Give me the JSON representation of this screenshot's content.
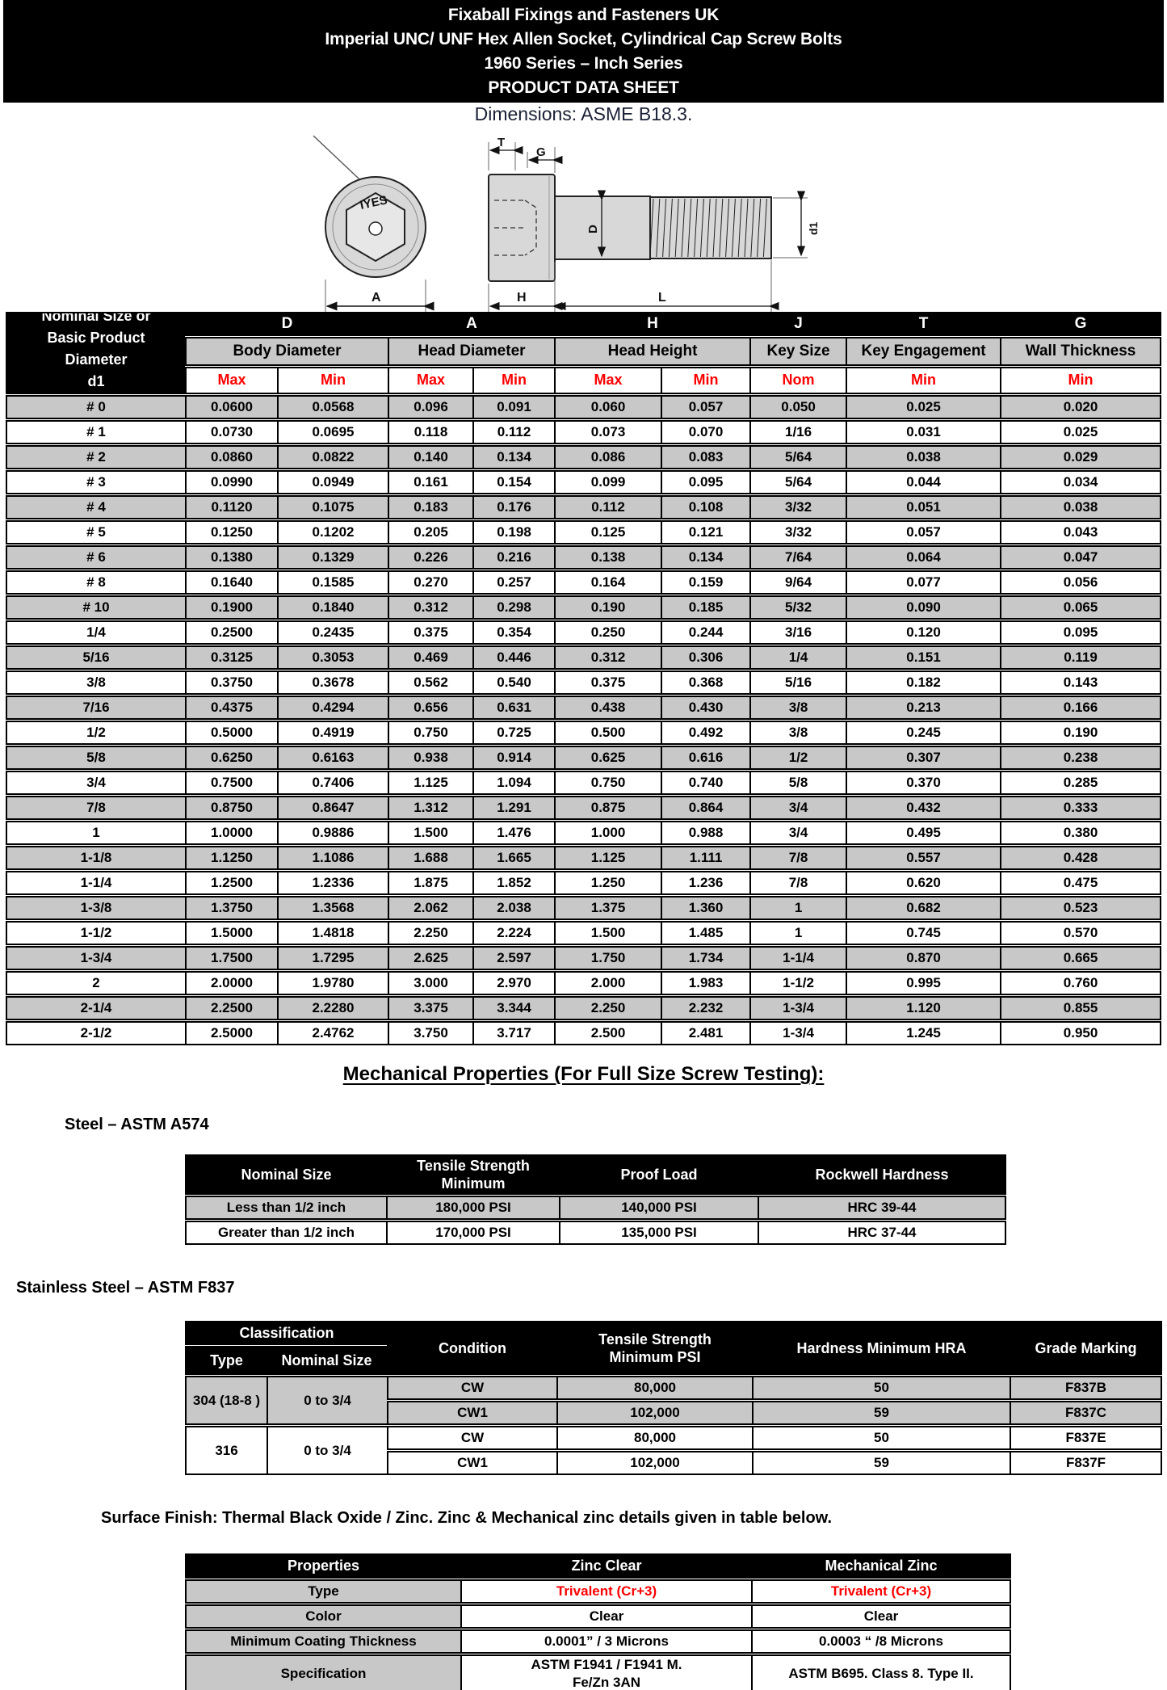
{
  "banner": {
    "lines": [
      "Fixaball Fixings and Fasteners UK",
      "Imperial UNC/ UNF Hex Allen Socket, Cylindrical Cap Screw Bolts",
      "1960 Series – Inch Series",
      "PRODUCT DATA SHEET"
    ]
  },
  "dimensions_note": "Dimensions: ASME B18.3.",
  "drawing": {
    "marking": "IYES",
    "labels": {
      "T": "T",
      "G": "G",
      "D": "D",
      "d1": "d1",
      "H": "H",
      "L": "L",
      "A": "A"
    }
  },
  "size_table": {
    "corner_lines": [
      "Nominal Size or",
      "Basic Product",
      "Diameter",
      "d1"
    ],
    "groups": [
      {
        "letter": "D",
        "title": "Body Diameter",
        "subs": [
          "Max",
          "Min"
        ]
      },
      {
        "letter": "A",
        "title": "Head Diameter",
        "subs": [
          "Max",
          "Min"
        ]
      },
      {
        "letter": "H",
        "title": "Head Height",
        "subs": [
          "Max",
          "Min"
        ]
      },
      {
        "letter": "J",
        "title": "Key Size",
        "subs": [
          "Nom"
        ]
      },
      {
        "letter": "T",
        "title": "Key Engagement",
        "subs": [
          "Min"
        ]
      },
      {
        "letter": "G",
        "title": "Wall Thickness",
        "subs": [
          "Min"
        ]
      }
    ],
    "rows": [
      [
        "# 0",
        "0.0600",
        "0.0568",
        "0.096",
        "0.091",
        "0.060",
        "0.057",
        "0.050",
        "0.025",
        "0.020"
      ],
      [
        "# 1",
        "0.0730",
        "0.0695",
        "0.118",
        "0.112",
        "0.073",
        "0.070",
        "1/16",
        "0.031",
        "0.025"
      ],
      [
        "# 2",
        "0.0860",
        "0.0822",
        "0.140",
        "0.134",
        "0.086",
        "0.083",
        "5/64",
        "0.038",
        "0.029"
      ],
      [
        "# 3",
        "0.0990",
        "0.0949",
        "0.161",
        "0.154",
        "0.099",
        "0.095",
        "5/64",
        "0.044",
        "0.034"
      ],
      [
        "# 4",
        "0.1120",
        "0.1075",
        "0.183",
        "0.176",
        "0.112",
        "0.108",
        "3/32",
        "0.051",
        "0.038"
      ],
      [
        "# 5",
        "0.1250",
        "0.1202",
        "0.205",
        "0.198",
        "0.125",
        "0.121",
        "3/32",
        "0.057",
        "0.043"
      ],
      [
        "# 6",
        "0.1380",
        "0.1329",
        "0.226",
        "0.216",
        "0.138",
        "0.134",
        "7/64",
        "0.064",
        "0.047"
      ],
      [
        "# 8",
        "0.1640",
        "0.1585",
        "0.270",
        "0.257",
        "0.164",
        "0.159",
        "9/64",
        "0.077",
        "0.056"
      ],
      [
        "# 10",
        "0.1900",
        "0.1840",
        "0.312",
        "0.298",
        "0.190",
        "0.185",
        "5/32",
        "0.090",
        "0.065"
      ],
      [
        "1/4",
        "0.2500",
        "0.2435",
        "0.375",
        "0.354",
        "0.250",
        "0.244",
        "3/16",
        "0.120",
        "0.095"
      ],
      [
        "5/16",
        "0.3125",
        "0.3053",
        "0.469",
        "0.446",
        "0.312",
        "0.306",
        "1/4",
        "0.151",
        "0.119"
      ],
      [
        "3/8",
        "0.3750",
        "0.3678",
        "0.562",
        "0.540",
        "0.375",
        "0.368",
        "5/16",
        "0.182",
        "0.143"
      ],
      [
        "7/16",
        "0.4375",
        "0.4294",
        "0.656",
        "0.631",
        "0.438",
        "0.430",
        "3/8",
        "0.213",
        "0.166"
      ],
      [
        "1/2",
        "0.5000",
        "0.4919",
        "0.750",
        "0.725",
        "0.500",
        "0.492",
        "3/8",
        "0.245",
        "0.190"
      ],
      [
        "5/8",
        "0.6250",
        "0.6163",
        "0.938",
        "0.914",
        "0.625",
        "0.616",
        "1/2",
        "0.307",
        "0.238"
      ],
      [
        "3/4",
        "0.7500",
        "0.7406",
        "1.125",
        "1.094",
        "0.750",
        "0.740",
        "5/8",
        "0.370",
        "0.285"
      ],
      [
        "7/8",
        "0.8750",
        "0.8647",
        "1.312",
        "1.291",
        "0.875",
        "0.864",
        "3/4",
        "0.432",
        "0.333"
      ],
      [
        "1",
        "1.0000",
        "0.9886",
        "1.500",
        "1.476",
        "1.000",
        "0.988",
        "3/4",
        "0.495",
        "0.380"
      ],
      [
        "1-1/8",
        "1.1250",
        "1.1086",
        "1.688",
        "1.665",
        "1.125",
        "1.111",
        "7/8",
        "0.557",
        "0.428"
      ],
      [
        "1-1/4",
        "1.2500",
        "1.2336",
        "1.875",
        "1.852",
        "1.250",
        "1.236",
        "7/8",
        "0.620",
        "0.475"
      ],
      [
        "1-3/8",
        "1.3750",
        "1.3568",
        "2.062",
        "2.038",
        "1.375",
        "1.360",
        "1",
        "0.682",
        "0.523"
      ],
      [
        "1-1/2",
        "1.5000",
        "1.4818",
        "2.250",
        "2.224",
        "1.500",
        "1.485",
        "1",
        "0.745",
        "0.570"
      ],
      [
        "1-3/4",
        "1.7500",
        "1.7295",
        "2.625",
        "2.597",
        "1.750",
        "1.734",
        "1-1/4",
        "0.870",
        "0.665"
      ],
      [
        "2",
        "2.0000",
        "1.9780",
        "3.000",
        "2.970",
        "2.000",
        "1.983",
        "1-1/2",
        "0.995",
        "0.760"
      ],
      [
        "2-1/4",
        "2.2500",
        "2.2280",
        "3.375",
        "3.344",
        "2.250",
        "2.232",
        "1-3/4",
        "1.120",
        "0.855"
      ],
      [
        "2-1/2",
        "2.5000",
        "2.4762",
        "3.750",
        "3.717",
        "2.500",
        "2.481",
        "1-3/4",
        "1.245",
        "0.950"
      ]
    ]
  },
  "mechanical": {
    "heading": "Mechanical Properties (For Full Size Screw Testing):",
    "steel_label": "Steel – ASTM A574",
    "steel_table": {
      "headers": [
        "Nominal Size",
        "Tensile Strength\nMinimum",
        "Proof Load",
        "Rockwell Hardness"
      ],
      "rows": [
        [
          "Less than 1/2 inch",
          "180,000 PSI",
          "140,000 PSI",
          "HRC 39-44"
        ],
        [
          "Greater than 1/2 inch",
          "170,000 PSI",
          "135,000 PSI",
          "HRC 37-44"
        ]
      ]
    },
    "stainless_label": "Stainless Steel – ASTM F837",
    "stainless_table": {
      "header": {
        "classification": "Classification",
        "type": "Type",
        "nominal_size": "Nominal Size",
        "condition": "Condition",
        "tensile": "Tensile Strength\nMinimum PSI",
        "hardness": "Hardness Minimum HRA",
        "grade": "Grade Marking"
      },
      "groups": [
        {
          "type": "304 (18-8 )",
          "size": "0 to 3/4",
          "shaded": true,
          "rows": [
            [
              "CW",
              "80,000",
              "50",
              "F837B"
            ],
            [
              "CW1",
              "102,000",
              "59",
              "F837C"
            ]
          ]
        },
        {
          "type": "316",
          "size": "0 to 3/4",
          "shaded": false,
          "rows": [
            [
              "CW",
              "80,000",
              "50",
              "F837E"
            ],
            [
              "CW1",
              "102,000",
              "59",
              "F837F"
            ]
          ]
        }
      ]
    }
  },
  "surface": {
    "note": "Surface Finish: Thermal Black Oxide / Zinc. Zinc & Mechanical zinc details given in table below.",
    "table": {
      "headers": [
        "Properties",
        "Zinc Clear",
        "Mechanical Zinc"
      ],
      "rows": [
        {
          "label": "Type",
          "zinc": "Trivalent (Cr+3)",
          "mech": "Trivalent (Cr+3)",
          "red": true
        },
        {
          "label": "Color",
          "zinc": "Clear",
          "mech": "Clear",
          "red": false
        },
        {
          "label": "Minimum Coating Thickness",
          "zinc": "0.0001” / 3 Microns",
          "mech": "0.0003 “ /8 Microns",
          "red": false
        },
        {
          "label": "Specification",
          "zinc": "ASTM F1941 / F1941 M.\nFe/Zn 3AN",
          "mech": "ASTM B695. Class 8. Type II.",
          "red": false
        }
      ]
    }
  },
  "colors": {
    "banner_black": "#000000",
    "row_gray": "#c8c8c8",
    "accent_red": "#ff0000"
  }
}
